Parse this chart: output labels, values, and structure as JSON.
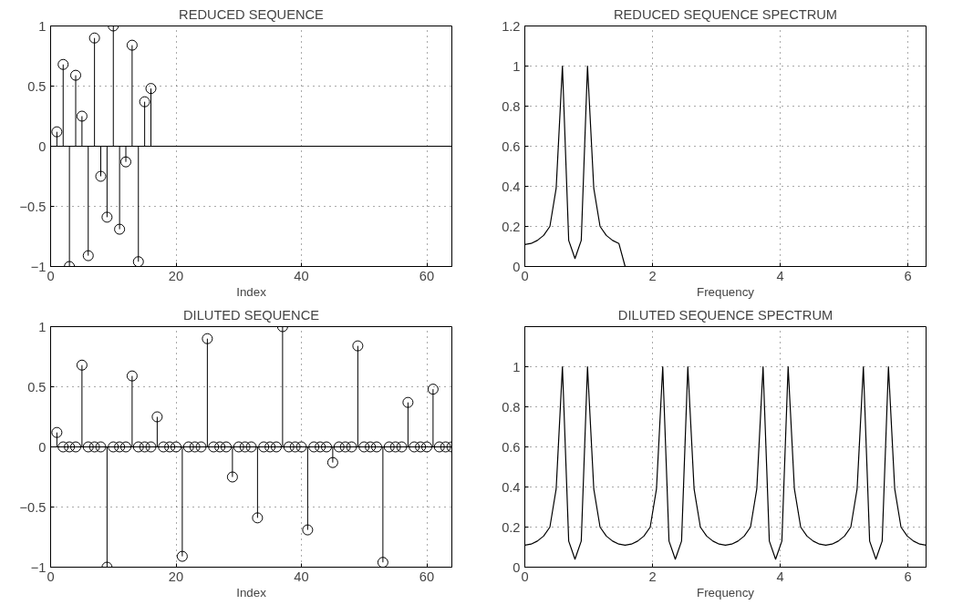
{
  "chart_data": [
    {
      "type": "lollipop",
      "title": "REDUCED SEQUENCE",
      "xlabel": "Index",
      "x": [
        1,
        2,
        3,
        4,
        5,
        6,
        7,
        8,
        9,
        10,
        11,
        12,
        13,
        14,
        15,
        16
      ],
      "values": [
        0.12,
        0.68,
        -1.0,
        0.59,
        0.25,
        -0.91,
        0.9,
        -0.25,
        -0.59,
        1.0,
        -0.69,
        -0.13,
        0.84,
        -0.96,
        0.37,
        0.48
      ],
      "color": "#000000",
      "marker": "circle",
      "xlim": [
        0,
        64
      ],
      "xticks": [
        0,
        20,
        40,
        60
      ],
      "ylim": [
        -1,
        1
      ],
      "yticks": [
        -1,
        -0.5,
        0,
        0.5,
        1
      ],
      "grid": true
    },
    {
      "type": "line",
      "title": "REDUCED SEQUENCE SPECTRUM",
      "xlabel": "Frequency",
      "x": [
        0,
        0.0982,
        0.1963,
        0.2945,
        0.3927,
        0.4909,
        0.589,
        0.6872,
        0.7854,
        0.8836,
        0.9817,
        1.0799,
        1.1781,
        1.2763,
        1.3744,
        1.4726,
        1.5708
      ],
      "values": [
        0.11,
        0.115,
        0.13,
        0.155,
        0.2,
        0.39,
        1.0,
        0.13,
        0.04,
        0.13,
        1.0,
        0.39,
        0.2,
        0.155,
        0.13,
        0.115,
        0
      ],
      "color": "#000000",
      "marker": "none",
      "line_style": "solid",
      "xlim": [
        0,
        6.2832
      ],
      "xticks": [
        0,
        2,
        4,
        6
      ],
      "ylim": [
        0,
        1.2
      ],
      "yticks": [
        0,
        0.2,
        0.4,
        0.6,
        0.8,
        1,
        1.2
      ],
      "grid": true
    },
    {
      "type": "lollipop",
      "title": "DILUTED SEQUENCE",
      "xlabel": "Index",
      "x": [
        1,
        2,
        3,
        4,
        5,
        6,
        7,
        8,
        9,
        10,
        11,
        12,
        13,
        14,
        15,
        16,
        17,
        18,
        19,
        20,
        21,
        22,
        23,
        24,
        25,
        26,
        27,
        28,
        29,
        30,
        31,
        32,
        33,
        34,
        35,
        36,
        37,
        38,
        39,
        40,
        41,
        42,
        43,
        44,
        45,
        46,
        47,
        48,
        49,
        50,
        51,
        52,
        53,
        54,
        55,
        56,
        57,
        58,
        59,
        60,
        61,
        62,
        63,
        64
      ],
      "values": [
        0.12,
        0,
        0,
        0,
        0.68,
        0,
        0,
        0,
        -1.0,
        0,
        0,
        0,
        0.59,
        0,
        0,
        0,
        0.25,
        0,
        0,
        0,
        -0.91,
        0,
        0,
        0,
        0.9,
        0,
        0,
        0,
        -0.25,
        0,
        0,
        0,
        -0.59,
        0,
        0,
        0,
        1.0,
        0,
        0,
        0,
        -0.69,
        0,
        0,
        0,
        -0.13,
        0,
        0,
        0,
        0.84,
        0,
        0,
        0,
        -0.96,
        0,
        0,
        0,
        0.37,
        0,
        0,
        0,
        0.48,
        0,
        0,
        0
      ],
      "color": "#000000",
      "marker": "circle",
      "xlim": [
        0,
        64
      ],
      "xticks": [
        0,
        20,
        40,
        60
      ],
      "ylim": [
        -1,
        1
      ],
      "yticks": [
        -1,
        -0.5,
        0,
        0.5,
        1
      ],
      "grid": true
    },
    {
      "type": "line",
      "title": "DILUTED SEQUENCE SPECTRUM",
      "xlabel": "Frequency",
      "x": [
        0,
        0.0982,
        0.1963,
        0.2945,
        0.3927,
        0.4909,
        0.589,
        0.6872,
        0.7854,
        0.8836,
        0.9817,
        1.0799,
        1.1781,
        1.2763,
        1.3744,
        1.4726,
        1.5708,
        1.669,
        1.7671,
        1.8653,
        1.9635,
        2.0617,
        2.1598,
        2.258,
        2.3562,
        2.4544,
        2.5525,
        2.6507,
        2.7489,
        2.8471,
        2.9452,
        3.0434,
        3.1416,
        3.2398,
        3.3379,
        3.4361,
        3.5343,
        3.6325,
        3.7306,
        3.8288,
        3.927,
        4.0252,
        4.1233,
        4.2215,
        4.3197,
        4.4179,
        4.516,
        4.6142,
        4.7124,
        4.8106,
        4.9087,
        5.0069,
        5.1051,
        5.2033,
        5.3014,
        5.3996,
        5.4978,
        5.596,
        5.6941,
        5.7923,
        5.8905,
        5.9887,
        6.0868,
        6.185,
        6.2832
      ],
      "values": [
        0.11,
        0.115,
        0.13,
        0.155,
        0.2,
        0.39,
        1.0,
        0.13,
        0.04,
        0.13,
        1.0,
        0.39,
        0.2,
        0.155,
        0.13,
        0.115,
        0.11,
        0.115,
        0.13,
        0.155,
        0.2,
        0.39,
        1.0,
        0.13,
        0.04,
        0.13,
        1.0,
        0.39,
        0.2,
        0.155,
        0.13,
        0.115,
        0.11,
        0.115,
        0.13,
        0.155,
        0.2,
        0.39,
        1.0,
        0.13,
        0.04,
        0.13,
        1.0,
        0.39,
        0.2,
        0.155,
        0.13,
        0.115,
        0.11,
        0.115,
        0.13,
        0.155,
        0.2,
        0.39,
        1.0,
        0.13,
        0.04,
        0.13,
        1.0,
        0.39,
        0.2,
        0.155,
        0.13,
        0.115,
        0.11
      ],
      "color": "#000000",
      "marker": "none",
      "line_style": "solid",
      "xlim": [
        0,
        6.2832
      ],
      "xticks": [
        0,
        2,
        4,
        6
      ],
      "ylim": [
        0,
        1.2
      ],
      "yticks": [
        0,
        0.2,
        0.4,
        0.6,
        0.8,
        1
      ],
      "grid": true
    }
  ]
}
